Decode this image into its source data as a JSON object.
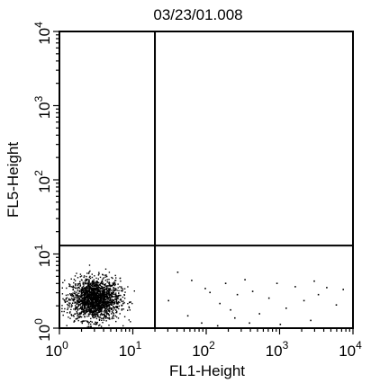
{
  "chart_data": {
    "type": "scatter",
    "title": "03/23/01.008",
    "xlabel": "FL1-Height",
    "ylabel": "FL5-Height",
    "x_scale": "log",
    "y_scale": "log",
    "xlim": [
      1,
      10000
    ],
    "ylim": [
      1,
      10000
    ],
    "x_ticks": [
      {
        "base": "10",
        "exp": "0"
      },
      {
        "base": "10",
        "exp": "1"
      },
      {
        "base": "10",
        "exp": "2"
      },
      {
        "base": "10",
        "exp": "3"
      },
      {
        "base": "10",
        "exp": "4"
      }
    ],
    "y_ticks": [
      {
        "base": "10",
        "exp": "0"
      },
      {
        "base": "10",
        "exp": "1"
      },
      {
        "base": "10",
        "exp": "2"
      },
      {
        "base": "10",
        "exp": "3"
      },
      {
        "base": "10",
        "exp": "4"
      }
    ],
    "quadrant_gates": {
      "x": 20,
      "y": 13
    },
    "grid": false,
    "legend": "none",
    "scatter": {
      "cluster": {
        "x_center": 3,
        "x_spread_decades": 0.17,
        "y_center": 2.5,
        "y_spread_decades": 0.14,
        "count": 1900
      },
      "sparse_points": [
        [
          40,
          5.8
        ],
        [
          62,
          4.5
        ],
        [
          85,
          1.2
        ],
        [
          110,
          3.1
        ],
        [
          150,
          2.2
        ],
        [
          180,
          4.1
        ],
        [
          210,
          1.8
        ],
        [
          260,
          2.9
        ],
        [
          330,
          4.6
        ],
        [
          420,
          3.2
        ],
        [
          520,
          1.6
        ],
        [
          700,
          2.6
        ],
        [
          900,
          4.1
        ],
        [
          1200,
          1.9
        ],
        [
          1600,
          3.7
        ],
        [
          2100,
          2.4
        ],
        [
          2600,
          1.3
        ],
        [
          3300,
          2.9
        ],
        [
          4300,
          3.6
        ],
        [
          5800,
          2.1
        ],
        [
          7200,
          3.4
        ],
        [
          30,
          2.4
        ],
        [
          55,
          1.5
        ],
        [
          95,
          3.5
        ],
        [
          140,
          1.1
        ],
        [
          240,
          1.4
        ],
        [
          380,
          1.2
        ],
        [
          1000,
          1.15
        ],
        [
          2900,
          4.4
        ]
      ]
    },
    "colors": {
      "axis": "#000000",
      "points": "#000000",
      "background": "#ffffff"
    }
  }
}
